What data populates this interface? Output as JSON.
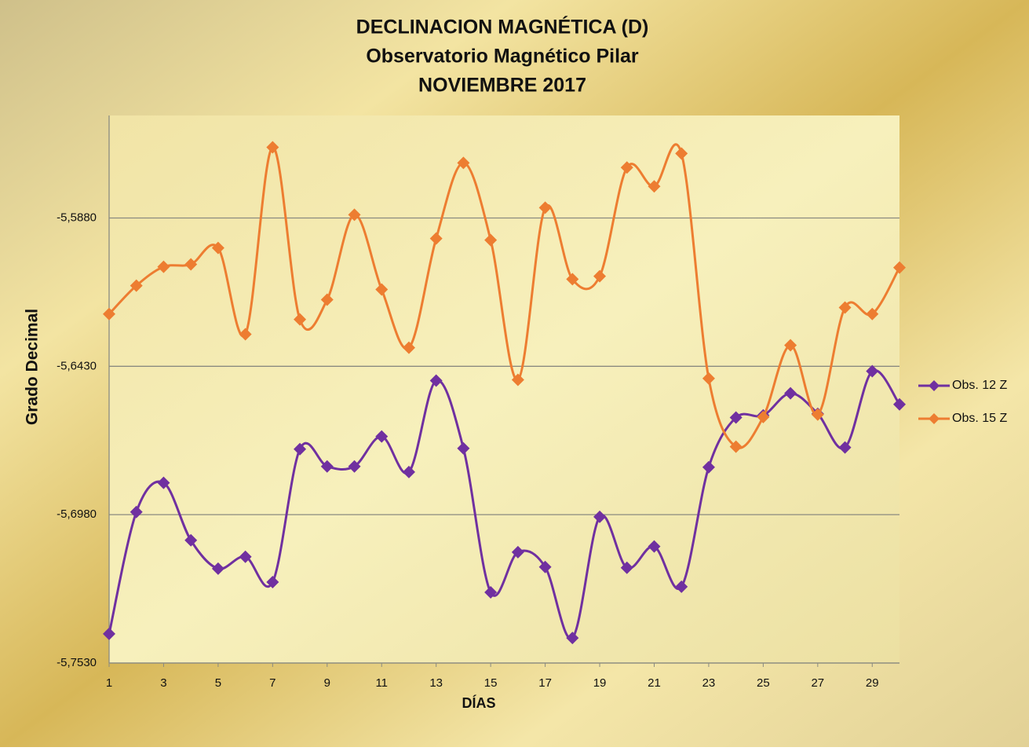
{
  "chart_data": {
    "type": "line",
    "title": "DECLINACION MAGNÉTICA (D)",
    "subtitle": "Observatorio  Magnético Pilar",
    "subtitle2": "NOVIEMBRE 2017",
    "x_label": "DÍAS",
    "y_label": "Grado Decimal",
    "x": [
      1,
      2,
      3,
      4,
      5,
      6,
      7,
      8,
      9,
      10,
      11,
      12,
      13,
      14,
      15,
      16,
      17,
      18,
      19,
      20,
      21,
      22,
      23,
      24,
      25,
      26,
      27,
      28,
      29,
      30
    ],
    "xlim": [
      1,
      30
    ],
    "xticks": [
      1,
      3,
      5,
      7,
      9,
      11,
      13,
      15,
      17,
      19,
      21,
      23,
      25,
      27,
      29
    ],
    "ylim": [
      -5.753,
      -5.55
    ],
    "yticks": [
      {
        "value": -5.753,
        "label": "-5,7530"
      },
      {
        "value": -5.698,
        "label": "-5,6980"
      },
      {
        "value": -5.643,
        "label": "-5,6430"
      },
      {
        "value": -5.588,
        "label": "-5,5880"
      }
    ],
    "grid": true,
    "smooth": true,
    "legend": "right",
    "series": [
      {
        "name": "Obs. 12 Z",
        "color": "#7030a0",
        "values": [
          -5.7422,
          -5.697,
          -5.6862,
          -5.7075,
          -5.718,
          -5.7136,
          -5.723,
          -5.6737,
          -5.6801,
          -5.6801,
          -5.669,
          -5.6822,
          -5.6483,
          -5.6734,
          -5.7268,
          -5.7119,
          -5.7174,
          -5.7437,
          -5.6988,
          -5.7177,
          -5.7098,
          -5.7247,
          -5.6804,
          -5.662,
          -5.6612,
          -5.653,
          -5.6606,
          -5.6731,
          -5.6448,
          -5.6571
        ]
      },
      {
        "name": "Obs. 15 Z",
        "color": "#ed7d31",
        "values": [
          -5.6236,
          -5.6131,
          -5.6061,
          -5.6052,
          -5.5991,
          -5.6311,
          -5.5618,
          -5.6256,
          -5.6183,
          -5.5868,
          -5.6145,
          -5.6361,
          -5.5956,
          -5.5676,
          -5.5962,
          -5.648,
          -5.5842,
          -5.6107,
          -5.6096,
          -5.5693,
          -5.5763,
          -5.5641,
          -5.6475,
          -5.6728,
          -5.6618,
          -5.6352,
          -5.6609,
          -5.6212,
          -5.6236,
          -5.6064
        ]
      }
    ]
  }
}
